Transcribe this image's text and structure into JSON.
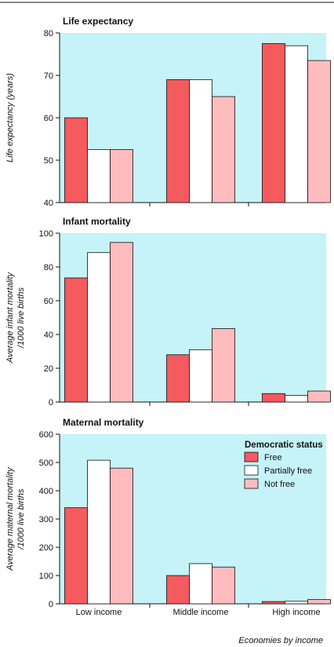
{
  "figure": {
    "xlabel": "Economies by income"
  },
  "legend": {
    "title": "Democratic status"
  },
  "colors": {
    "background": "#c5f3f7",
    "Free": "#f55a5e",
    "Partially free": "#ffffff",
    "Not free": "#ffbcbf"
  },
  "chart_data": [
    {
      "type": "bar",
      "title": "Life expectancy",
      "ylabel": [
        "Life expectancy (years)"
      ],
      "categories": [
        "Low income",
        "Middle income",
        "High income"
      ],
      "ylim": [
        40,
        80
      ],
      "yticks": [
        40,
        50,
        60,
        70,
        80
      ],
      "series": [
        {
          "name": "Free",
          "values": [
            60,
            69,
            77.5
          ]
        },
        {
          "name": "Partially free",
          "values": [
            52.5,
            69,
            77
          ]
        },
        {
          "name": "Not free",
          "values": [
            52.5,
            65,
            73.5
          ]
        }
      ]
    },
    {
      "type": "bar",
      "title": "Infant mortality",
      "ylabel": [
        "Average infant mortality",
        "/1000 live births"
      ],
      "categories": [
        "Low income",
        "Middle income",
        "High income"
      ],
      "ylim": [
        0,
        100
      ],
      "yticks": [
        0,
        20,
        40,
        60,
        80,
        100
      ],
      "series": [
        {
          "name": "Free",
          "values": [
            73.5,
            28,
            5
          ]
        },
        {
          "name": "Partially free",
          "values": [
            88.5,
            31,
            4
          ]
        },
        {
          "name": "Not free",
          "values": [
            94.5,
            43.5,
            6.5
          ]
        }
      ]
    },
    {
      "type": "bar",
      "title": "Maternal mortality",
      "ylabel": [
        "Average maternal mortality",
        "/1000 live births"
      ],
      "categories": [
        "Low income",
        "Middle income",
        "High income"
      ],
      "ylim": [
        0,
        600
      ],
      "yticks": [
        0,
        100,
        200,
        300,
        400,
        500,
        600
      ],
      "series": [
        {
          "name": "Free",
          "values": [
            340,
            100,
            8
          ]
        },
        {
          "name": "Partially free",
          "values": [
            508,
            142,
            9
          ]
        },
        {
          "name": "Not free",
          "values": [
            480,
            130,
            15
          ]
        }
      ]
    }
  ]
}
